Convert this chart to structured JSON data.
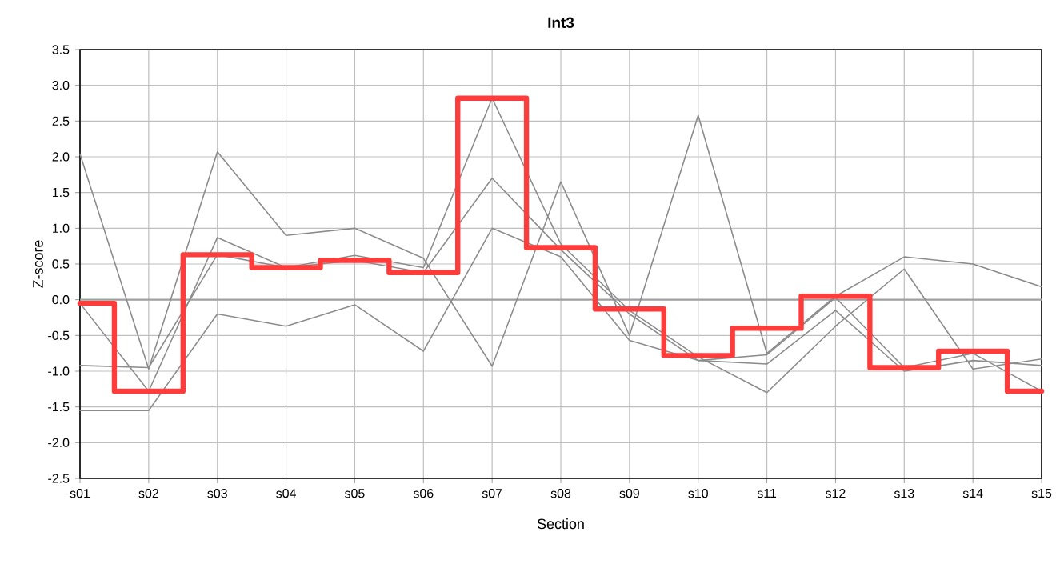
{
  "chart_data": {
    "type": "line",
    "title": "Int3",
    "xlabel": "Section",
    "ylabel": "Z-score",
    "categories": [
      "s01",
      "s02",
      "s03",
      "s04",
      "s05",
      "s06",
      "s07",
      "s08",
      "s09",
      "s10",
      "s11",
      "s12",
      "s13",
      "s14",
      "s15"
    ],
    "ylim": [
      -2.5,
      3.5
    ],
    "yticks": [
      {
        "value": -2.5,
        "label": "-2.5"
      },
      {
        "value": -2,
        "label": "-2.0"
      },
      {
        "value": -1.5,
        "label": "-1.5"
      },
      {
        "value": -1,
        "label": "-1.0"
      },
      {
        "value": -0.5,
        "label": "-0.5"
      },
      {
        "value": 0,
        "label": "0.0"
      },
      {
        "value": 0.5,
        "label": "0.5"
      },
      {
        "value": 1,
        "label": "1.0"
      },
      {
        "value": 1.5,
        "label": "1.5"
      },
      {
        "value": 2,
        "label": "2.0"
      },
      {
        "value": 2.5,
        "label": "2.5"
      },
      {
        "value": 3,
        "label": "3.0"
      },
      {
        "value": 3.5,
        "label": "3.5"
      }
    ],
    "grid": true,
    "marker": "none",
    "line_style": "solid",
    "ref_lines": [
      {
        "axis": "y",
        "value": 0,
        "color": "#a0a0a0"
      }
    ],
    "series": [
      {
        "color": "#8c8c8c",
        "values": [
          2.04,
          -0.97,
          2.07,
          0.9,
          1.0,
          0.58,
          -0.93,
          1.65,
          -0.5,
          2.58,
          -0.75,
          0.05,
          0.6,
          0.5,
          0.18
        ]
      },
      {
        "color": "#8c8c8c",
        "values": [
          -0.05,
          -1.28,
          0.87,
          0.45,
          0.62,
          0.45,
          2.82,
          0.78,
          -0.15,
          -0.8,
          -1.3,
          -0.37,
          0.43,
          -0.97,
          -0.83
        ]
      },
      {
        "color": "#8c8c8c",
        "values": [
          -0.92,
          -0.95,
          0.63,
          0.45,
          0.55,
          0.38,
          1.7,
          0.7,
          -0.2,
          -0.85,
          -0.77,
          0.03,
          -0.95,
          -0.75,
          -1.28
        ]
      },
      {
        "color": "#8c8c8c",
        "values": [
          -1.55,
          -1.55,
          -0.2,
          -0.37,
          -0.07,
          -0.72,
          1.0,
          0.6,
          -0.57,
          -0.85,
          -0.9,
          -0.15,
          -1.0,
          -0.85,
          -0.92
        ]
      },
      {
        "type": "step",
        "color": "#ff3c3c",
        "values": [
          -0.05,
          -1.28,
          0.63,
          0.45,
          0.55,
          0.38,
          2.82,
          0.73,
          -0.13,
          -0.78,
          -0.4,
          0.05,
          -0.95,
          -0.72,
          -1.28
        ]
      }
    ]
  }
}
